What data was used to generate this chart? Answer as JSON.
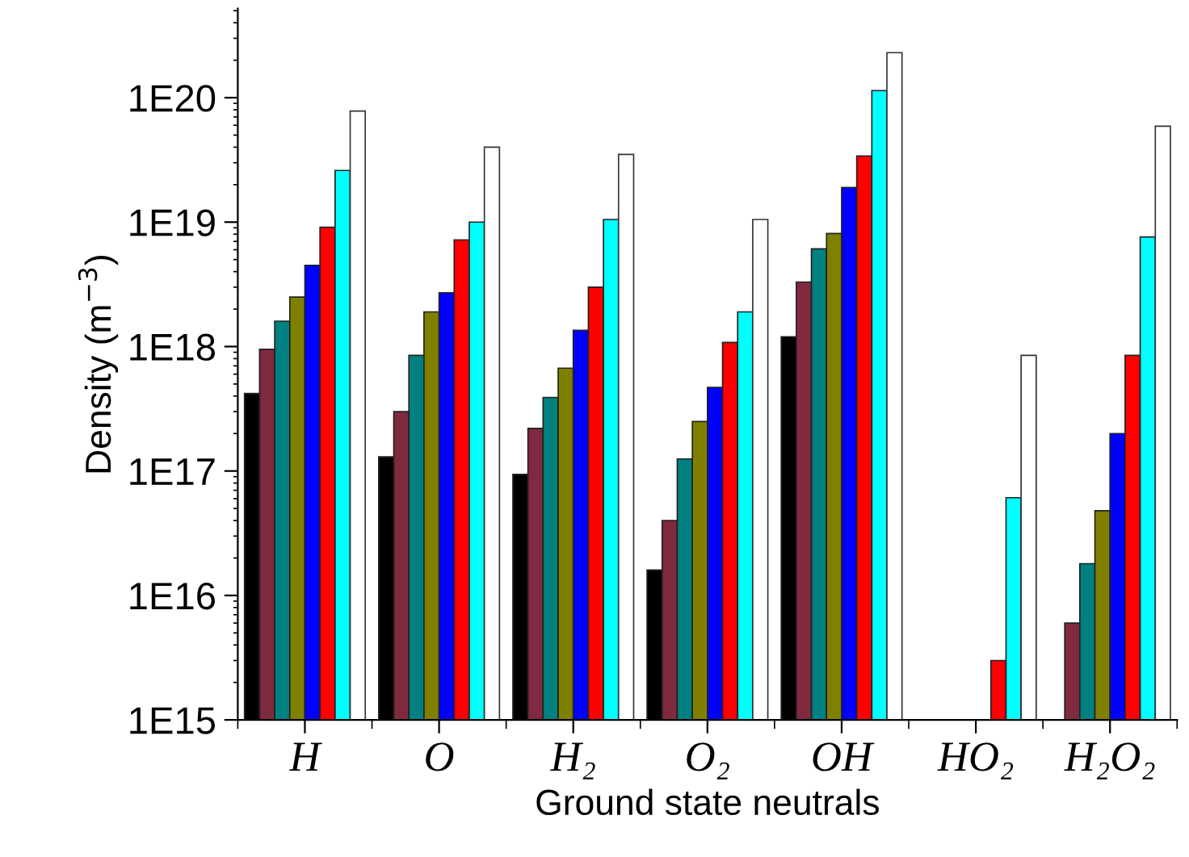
{
  "chart_data": {
    "type": "bar",
    "xlabel": "Ground state neutrals",
    "ylabel": "Density (m$^{−3}$)",
    "categories": [
      "H",
      "O",
      "H₂",
      "O₂",
      "OH",
      "HO₂",
      "H₂O₂"
    ],
    "log": "y",
    "ylim": [
      1000000000000000.0,
      5.2e+20
    ],
    "yticks": [
      {
        "value": 1000000000000000.0,
        "label": "1E15"
      },
      {
        "value": 1e+16,
        "label": "1E16"
      },
      {
        "value": 1e+17,
        "label": "1E17"
      },
      {
        "value": 1e+18,
        "label": "1E18"
      },
      {
        "value": 1e+19,
        "label": "1E19"
      },
      {
        "value": 1e+20,
        "label": "1E20"
      }
    ],
    "grid": false,
    "legend": false,
    "series": [
      {
        "color": "#000000",
        "values": [
          4.2e+17,
          1.3e+17,
          9.4e+16,
          1.6e+16,
          1.2e+18,
          null,
          null
        ]
      },
      {
        "color": "#7f2a3f",
        "values": [
          9.5e+17,
          3e+17,
          2.2e+17,
          4e+16,
          3.3e+18,
          null,
          6000000000000000.0
        ]
      },
      {
        "color": "#008080",
        "values": [
          1.6e+18,
          8.5e+17,
          3.9e+17,
          1.25e+17,
          6.1e+18,
          null,
          1.8e+16
        ]
      },
      {
        "color": "#808000",
        "values": [
          2.5e+18,
          1.9e+18,
          6.7e+17,
          2.5e+17,
          8.1e+18,
          null,
          4.8e+16
        ]
      },
      {
        "color": "#0000ff",
        "values": [
          4.5e+18,
          2.7e+18,
          1.35e+18,
          4.7e+17,
          1.9e+19,
          null,
          2e+17
        ]
      },
      {
        "color": "#ff0000",
        "values": [
          9.1e+18,
          7.2e+18,
          3e+18,
          1.08e+18,
          3.4e+19,
          3000000000000000.0,
          8.5e+17
        ]
      },
      {
        "color": "#00ffff",
        "values": [
          2.6e+19,
          1e+19,
          1.05e+19,
          1.9e+18,
          1.14e+20,
          6.1e+16,
          7.6e+18
        ]
      },
      {
        "color": "#ffffff",
        "values": [
          7.8e+19,
          4e+19,
          3.5e+19,
          1.05e+19,
          2.3e+20,
          8.5e+17,
          5.9e+19
        ]
      }
    ]
  }
}
